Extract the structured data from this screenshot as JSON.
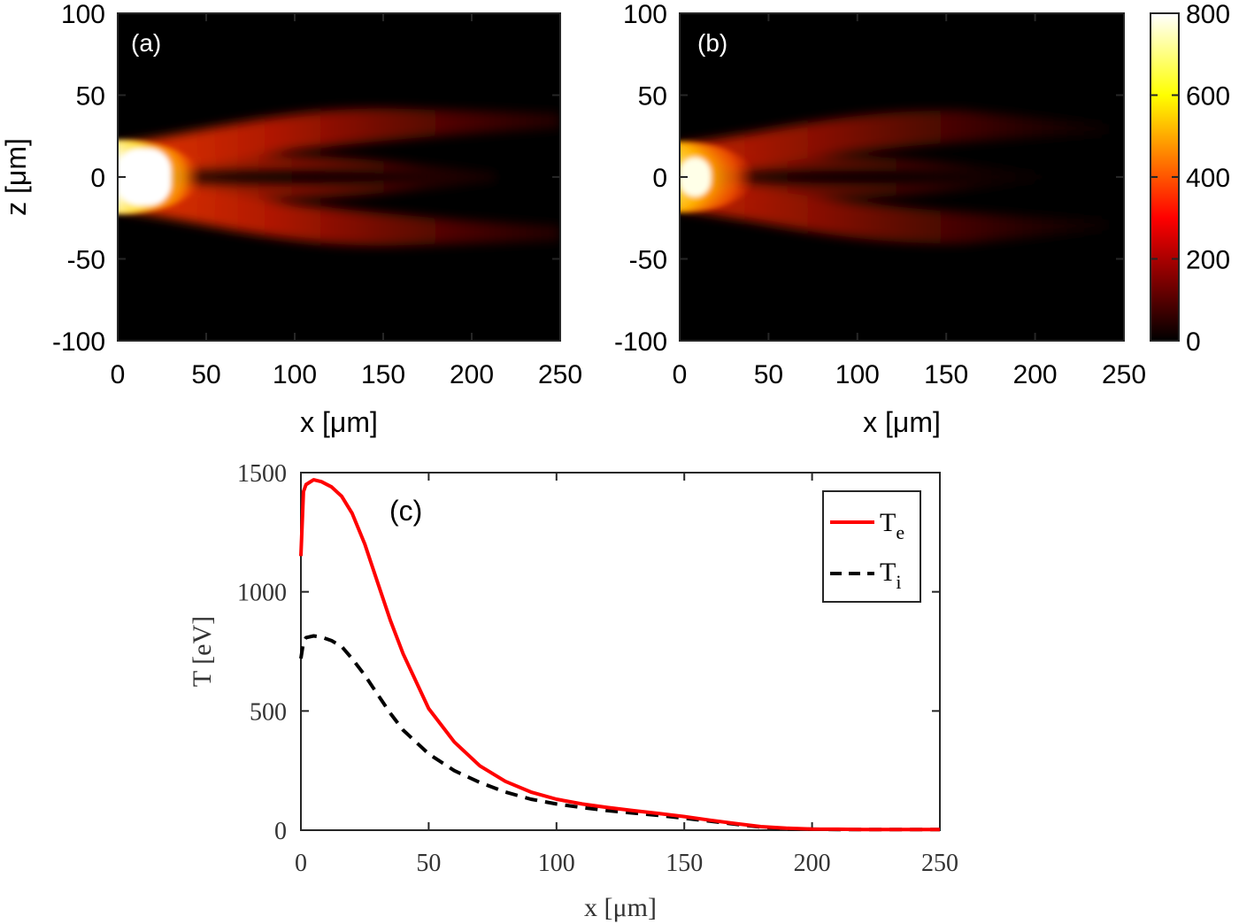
{
  "chart_data": [
    {
      "type": "heatmap",
      "panel_label": "(a)",
      "xlabel": "x [μm]",
      "ylabel": "z [μm]",
      "xlim": [
        0,
        250
      ],
      "ylim": [
        -100,
        100
      ],
      "xticks": [
        "0",
        "50",
        "100",
        "150",
        "200",
        "250"
      ],
      "yticks": [
        "100",
        "50",
        "0",
        "-50",
        "-100"
      ],
      "colormap": "hot",
      "clim": [
        0,
        800
      ],
      "description_values": {
        "core_value_near_axis": 800,
        "core_extent_x": [
          0,
          35
        ],
        "core_halfwidth_z": 18,
        "outer_envelope_halfwidth_z_at_x150": 40,
        "jets_extend_to_x": 250
      }
    },
    {
      "type": "heatmap",
      "panel_label": "(b)",
      "xlabel": "x [μm]",
      "ylabel": "",
      "xlim": [
        0,
        250
      ],
      "ylim": [
        -100,
        100
      ],
      "xticks": [
        "0",
        "50",
        "100",
        "150",
        "200",
        "250"
      ],
      "yticks": [
        "100",
        "50",
        "0",
        "-50",
        "-100"
      ],
      "colormap": "hot",
      "clim": [
        0,
        800
      ],
      "colorbar_ticks": [
        "800",
        "600",
        "400",
        "200",
        "0"
      ],
      "description_values": {
        "core_value_near_axis": 700,
        "core_extent_x": [
          0,
          30
        ],
        "core_halfwidth_z": 16,
        "outer_envelope_halfwidth_z_at_x150": 38,
        "jets_extend_to_x": 240
      }
    },
    {
      "type": "line",
      "panel_label": "(c)",
      "xlabel": "x [μm]",
      "ylabel": "T [eV]",
      "xlim": [
        0,
        250
      ],
      "ylim": [
        0,
        1500
      ],
      "xticks": [
        "0",
        "50",
        "100",
        "150",
        "200",
        "250"
      ],
      "yticks": [
        "1500",
        "1000",
        "500",
        "0"
      ],
      "legend_position": "top-right",
      "series": [
        {
          "name": "T",
          "subscript": "e",
          "color": "#ff0000",
          "dash": "solid",
          "x": [
            0,
            1,
            2,
            5,
            8,
            12,
            16,
            20,
            25,
            30,
            35,
            40,
            50,
            60,
            70,
            80,
            90,
            100,
            110,
            120,
            130,
            140,
            150,
            160,
            170,
            180,
            190,
            200,
            210,
            220,
            230,
            240,
            250
          ],
          "y": [
            1150,
            1420,
            1450,
            1470,
            1462,
            1440,
            1400,
            1330,
            1200,
            1040,
            880,
            740,
            510,
            370,
            270,
            205,
            160,
            130,
            110,
            95,
            82,
            70,
            57,
            42,
            28,
            15,
            8,
            5,
            4,
            3,
            3,
            3,
            3
          ]
        },
        {
          "name": "T",
          "subscript": "i",
          "color": "#000000",
          "dash": "dashed",
          "x": [
            0,
            1,
            2,
            5,
            8,
            12,
            16,
            20,
            25,
            30,
            35,
            40,
            50,
            60,
            70,
            80,
            90,
            100,
            110,
            120,
            130,
            140,
            150,
            160,
            170,
            180,
            190,
            200,
            210,
            220,
            230,
            240,
            250
          ],
          "y": [
            720,
            790,
            808,
            815,
            810,
            795,
            770,
            720,
            650,
            570,
            490,
            420,
            320,
            250,
            200,
            160,
            130,
            110,
            95,
            82,
            72,
            62,
            50,
            38,
            25,
            13,
            6,
            4,
            3,
            3,
            3,
            3,
            3
          ]
        }
      ]
    }
  ]
}
